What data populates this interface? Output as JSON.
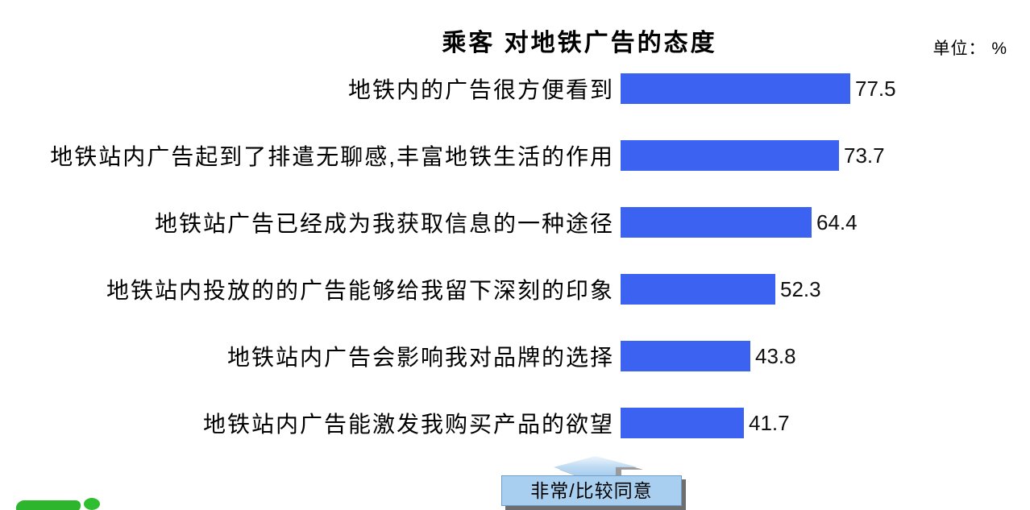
{
  "chart_data": {
    "type": "bar",
    "orientation": "horizontal",
    "title": "乘客 对地铁广告的态度",
    "unit_label": "单位： %",
    "categories": [
      "地铁内的广告很方便看到",
      "地铁站内广告起到了排遣无聊感,丰富地铁生活的作用",
      "地铁站广告已经成为我获取信息的一种途径",
      "地铁站内投放的的广告能够给我留下深刻的印象",
      "地铁站内广告会影响我对品牌的选择",
      "地铁站内广告能激发我购买产品的欲望"
    ],
    "values": [
      77.5,
      73.7,
      64.4,
      52.3,
      43.8,
      41.7
    ],
    "xlim": [
      0,
      100
    ],
    "grid": false,
    "value_labels_shown": true,
    "legend_callout": "非常/比较同意",
    "legend_position": "bottom-center",
    "bar_color": "#3c62f2",
    "callout_fill": "#a9cff0",
    "logo_color": "#2db52d"
  }
}
